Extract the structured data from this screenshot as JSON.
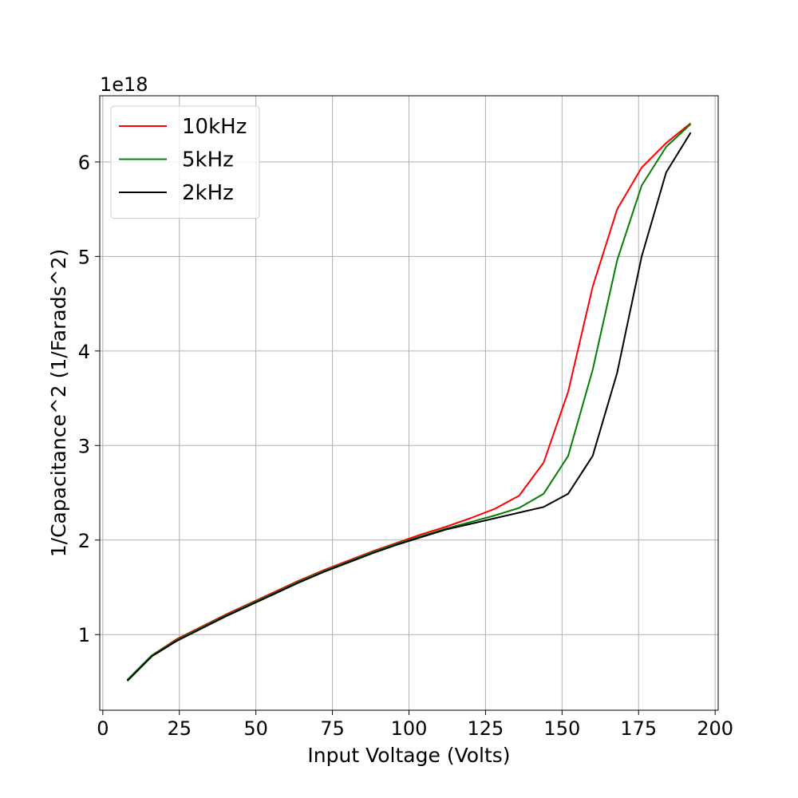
{
  "chart_data": {
    "type": "line",
    "title": "",
    "xlabel": "Input Voltage (Volts)",
    "ylabel": "1/Capacitance^2 (1/Farads^2)",
    "y_offset_label": "1e18",
    "y_scale": 1e+18,
    "xlim": [
      -1,
      201
    ],
    "ylim": [
      2e+17,
      6.7e+18
    ],
    "x_ticks": [
      0,
      25,
      50,
      75,
      100,
      125,
      150,
      175,
      200
    ],
    "x_tick_labels": [
      "0",
      "25",
      "50",
      "75",
      "100",
      "125",
      "150",
      "175",
      "200"
    ],
    "y_ticks": [
      1e+18,
      2e+18,
      3e+18,
      4e+18,
      5e+18,
      6e+18
    ],
    "y_tick_labels": [
      "1",
      "2",
      "3",
      "4",
      "5",
      "6"
    ],
    "grid": true,
    "legend_position": "upper-left",
    "x": [
      8,
      16,
      24,
      32,
      40,
      48,
      56,
      64,
      72,
      80,
      88,
      96,
      104,
      112,
      120,
      128,
      136,
      144,
      152,
      160,
      168,
      176,
      184,
      192
    ],
    "series": [
      {
        "name": "10kHz",
        "color": "#ff0000",
        "values": [
          5.2e+17,
          7.8e+17,
          9.5e+17,
          1.08e+18,
          1.21e+18,
          1.33e+18,
          1.45e+18,
          1.57e+18,
          1.68e+18,
          1.78e+18,
          1.88e+18,
          1.97e+18,
          2.06e+18,
          2.14e+18,
          2.23e+18,
          2.33e+18,
          2.47e+18,
          2.82e+18,
          3.57e+18,
          4.68e+18,
          5.5e+18,
          5.94e+18,
          6.2e+18,
          6.41e+18
        ]
      },
      {
        "name": "5kHz",
        "color": "#008000",
        "values": [
          5.2e+17,
          7.8e+17,
          9.4e+17,
          1.07e+18,
          1.2e+18,
          1.32e+18,
          1.44e+18,
          1.56e+18,
          1.67e+18,
          1.77e+18,
          1.87e+18,
          1.96e+18,
          2.04e+18,
          2.12e+18,
          2.19e+18,
          2.26e+18,
          2.34e+18,
          2.49e+18,
          2.89e+18,
          3.8e+18,
          4.96e+18,
          5.75e+18,
          6.16e+18,
          6.4e+18
        ]
      },
      {
        "name": "2kHz",
        "color": "#000000",
        "values": [
          5.1e+17,
          7.7e+17,
          9.3e+17,
          1.06e+18,
          1.19e+18,
          1.31e+18,
          1.43e+18,
          1.55e+18,
          1.66e+18,
          1.76e+18,
          1.86e+18,
          1.95e+18,
          2.03e+18,
          2.11e+18,
          2.17e+18,
          2.23e+18,
          2.29e+18,
          2.35e+18,
          2.49e+18,
          2.89e+18,
          3.77e+18,
          5e+18,
          5.89e+18,
          6.31e+18
        ]
      }
    ]
  }
}
